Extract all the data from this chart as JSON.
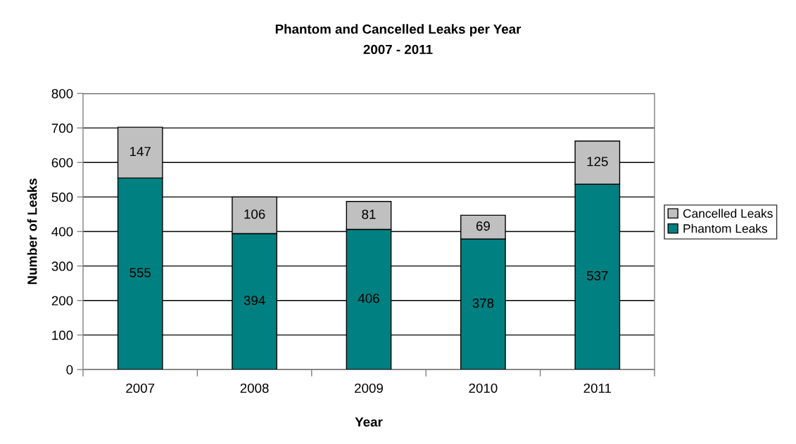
{
  "chart_data": {
    "type": "bar",
    "title": "Phantom and Cancelled Leaks per Year",
    "subtitle": "2007 - 2011",
    "xlabel": "Year",
    "ylabel": "Number of Leaks",
    "categories": [
      "2007",
      "2008",
      "2009",
      "2010",
      "2011"
    ],
    "series": [
      {
        "name": "Phantom Leaks",
        "color": "#008080",
        "values": [
          555,
          394,
          406,
          378,
          537
        ]
      },
      {
        "name": "Cancelled Leaks",
        "color": "#c0c0c0",
        "values": [
          147,
          106,
          81,
          69,
          125
        ]
      }
    ],
    "stacked": true,
    "data_labels": true,
    "ylim": [
      0,
      800
    ],
    "yticks": [
      0,
      100,
      200,
      300,
      400,
      500,
      600,
      700,
      800
    ],
    "grid": "y",
    "legend": "right"
  }
}
